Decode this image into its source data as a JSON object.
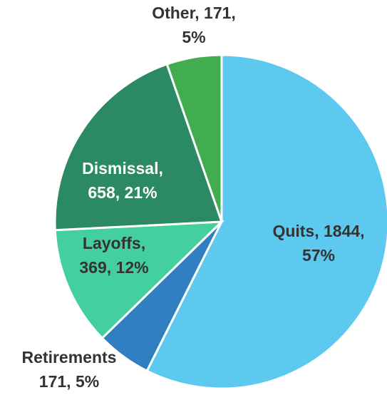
{
  "chart_data": {
    "type": "pie",
    "values": [
      1844,
      171,
      369,
      658,
      171
    ],
    "value_labels": [
      [
        "Quits, 1844,",
        "57%"
      ],
      [
        "Retirements",
        "171, 5%"
      ],
      [
        "Layoffs,",
        "369, 12%"
      ],
      [
        "Dismissal,",
        "658, 21%"
      ],
      [
        "Other, 171,",
        "5%"
      ]
    ],
    "colors": [
      "#5ec9ef",
      "#2f7fc1",
      "#43cf9e",
      "#2b8a63",
      "#41ad4f"
    ],
    "label_colors": [
      "#333333",
      "#333333",
      "#333333",
      "#ffffff",
      "#333333"
    ]
  }
}
